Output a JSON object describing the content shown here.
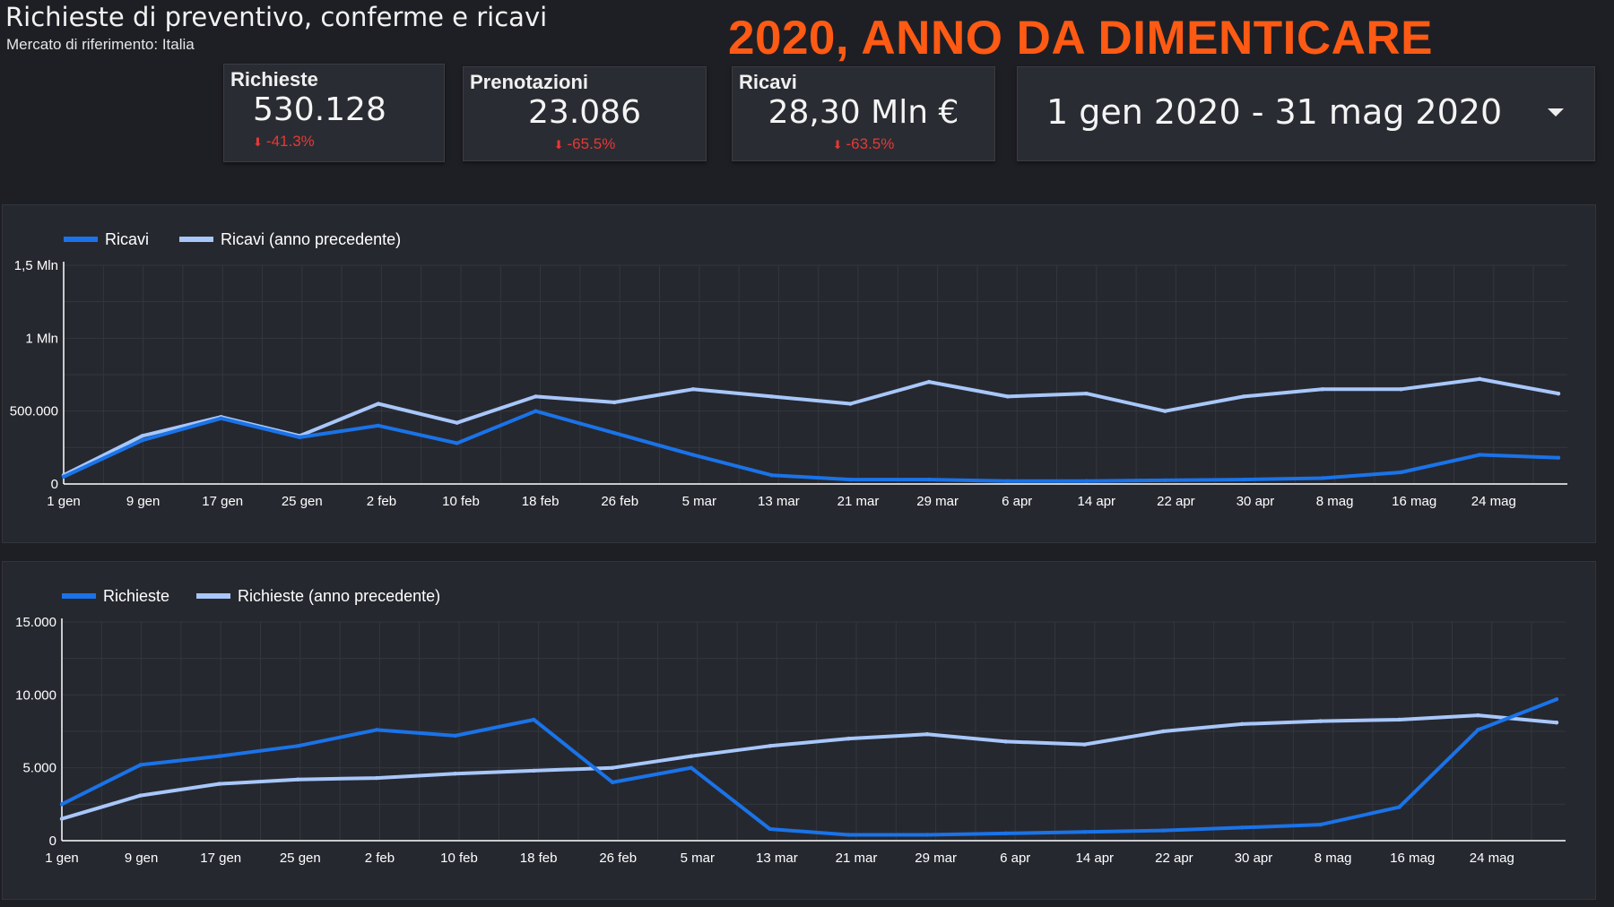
{
  "header": {
    "title": "Richieste di preventivo, conferme e ricavi",
    "subtitle": "Mercato di riferimento: Italia",
    "headline": "2020, ANNO DA DIMENTICARE"
  },
  "kpis": [
    {
      "label": "Richieste",
      "value": "530.128",
      "delta": "-41.3%"
    },
    {
      "label": "Prenotazioni",
      "value": "23.086",
      "delta": "-65.5%"
    },
    {
      "label": "Ricavi",
      "value": "28,30 Mln €",
      "delta": "-63.5%"
    }
  ],
  "date_range": {
    "label": "1 gen 2020 - 31 mag 2020"
  },
  "colors": {
    "current": "#1a73e8",
    "previous": "#a8c7fa",
    "headline": "#ff5a14",
    "delta_negative": "#e53935"
  },
  "chart_data": [
    {
      "type": "line",
      "title": "",
      "x_tick_labels": [
        "1 gen",
        "9 gen",
        "17 gen",
        "25 gen",
        "2 feb",
        "10 feb",
        "18 feb",
        "26 feb",
        "5 mar",
        "13 mar",
        "21 mar",
        "29 mar",
        "6 apr",
        "14 apr",
        "22 apr",
        "30 apr",
        "8 mag",
        "16 mag",
        "24 mag"
      ],
      "y_tick_labels": [
        "0",
        "500.000",
        "1 Mln",
        "1,5 Mln"
      ],
      "ylim": [
        0,
        1500000
      ],
      "legend_position": "top-left",
      "x": [
        "1 gen",
        "9 gen",
        "17 gen",
        "25 gen",
        "2 feb",
        "10 feb",
        "18 feb",
        "26 feb",
        "5 mar",
        "13 mar",
        "21 mar",
        "29 mar",
        "6 apr",
        "14 apr",
        "22 apr",
        "30 apr",
        "8 mag",
        "16 mag",
        "24 mag",
        "31 mag"
      ],
      "series": [
        {
          "name": "Ricavi",
          "values": [
            50000,
            300000,
            450000,
            320000,
            400000,
            280000,
            500000,
            350000,
            200000,
            60000,
            30000,
            30000,
            20000,
            20000,
            25000,
            30000,
            40000,
            80000,
            200000,
            180000
          ]
        },
        {
          "name": "Ricavi (anno precedente)",
          "values": [
            60000,
            330000,
            460000,
            330000,
            550000,
            420000,
            600000,
            560000,
            650000,
            600000,
            550000,
            700000,
            600000,
            620000,
            500000,
            600000,
            650000,
            650000,
            720000,
            620000
          ]
        }
      ]
    },
    {
      "type": "line",
      "title": "",
      "x_tick_labels": [
        "1 gen",
        "9 gen",
        "17 gen",
        "25 gen",
        "2 feb",
        "10 feb",
        "18 feb",
        "26 feb",
        "5 mar",
        "13 mar",
        "21 mar",
        "29 mar",
        "6 apr",
        "14 apr",
        "22 apr",
        "30 apr",
        "8 mag",
        "16 mag",
        "24 mag"
      ],
      "y_tick_labels": [
        "0",
        "5.000",
        "10.000",
        "15.000"
      ],
      "ylim": [
        0,
        15000
      ],
      "legend_position": "top-left",
      "x": [
        "1 gen",
        "9 gen",
        "17 gen",
        "25 gen",
        "2 feb",
        "10 feb",
        "18 feb",
        "26 feb",
        "5 mar",
        "13 mar",
        "21 mar",
        "29 mar",
        "6 apr",
        "14 apr",
        "22 apr",
        "30 apr",
        "8 mag",
        "16 mag",
        "24 mag",
        "31 mag"
      ],
      "series": [
        {
          "name": "Richieste",
          "values": [
            2500,
            5200,
            5800,
            6500,
            7600,
            7200,
            8300,
            4000,
            5000,
            800,
            400,
            400,
            500,
            600,
            700,
            900,
            1100,
            2300,
            7600,
            9700
          ]
        },
        {
          "name": "Richieste (anno precedente)",
          "values": [
            1500,
            3100,
            3900,
            4200,
            4300,
            4600,
            4800,
            5000,
            5800,
            6500,
            7000,
            7300,
            6800,
            6600,
            7500,
            8000,
            8200,
            8300,
            8600,
            8100
          ]
        }
      ]
    }
  ]
}
